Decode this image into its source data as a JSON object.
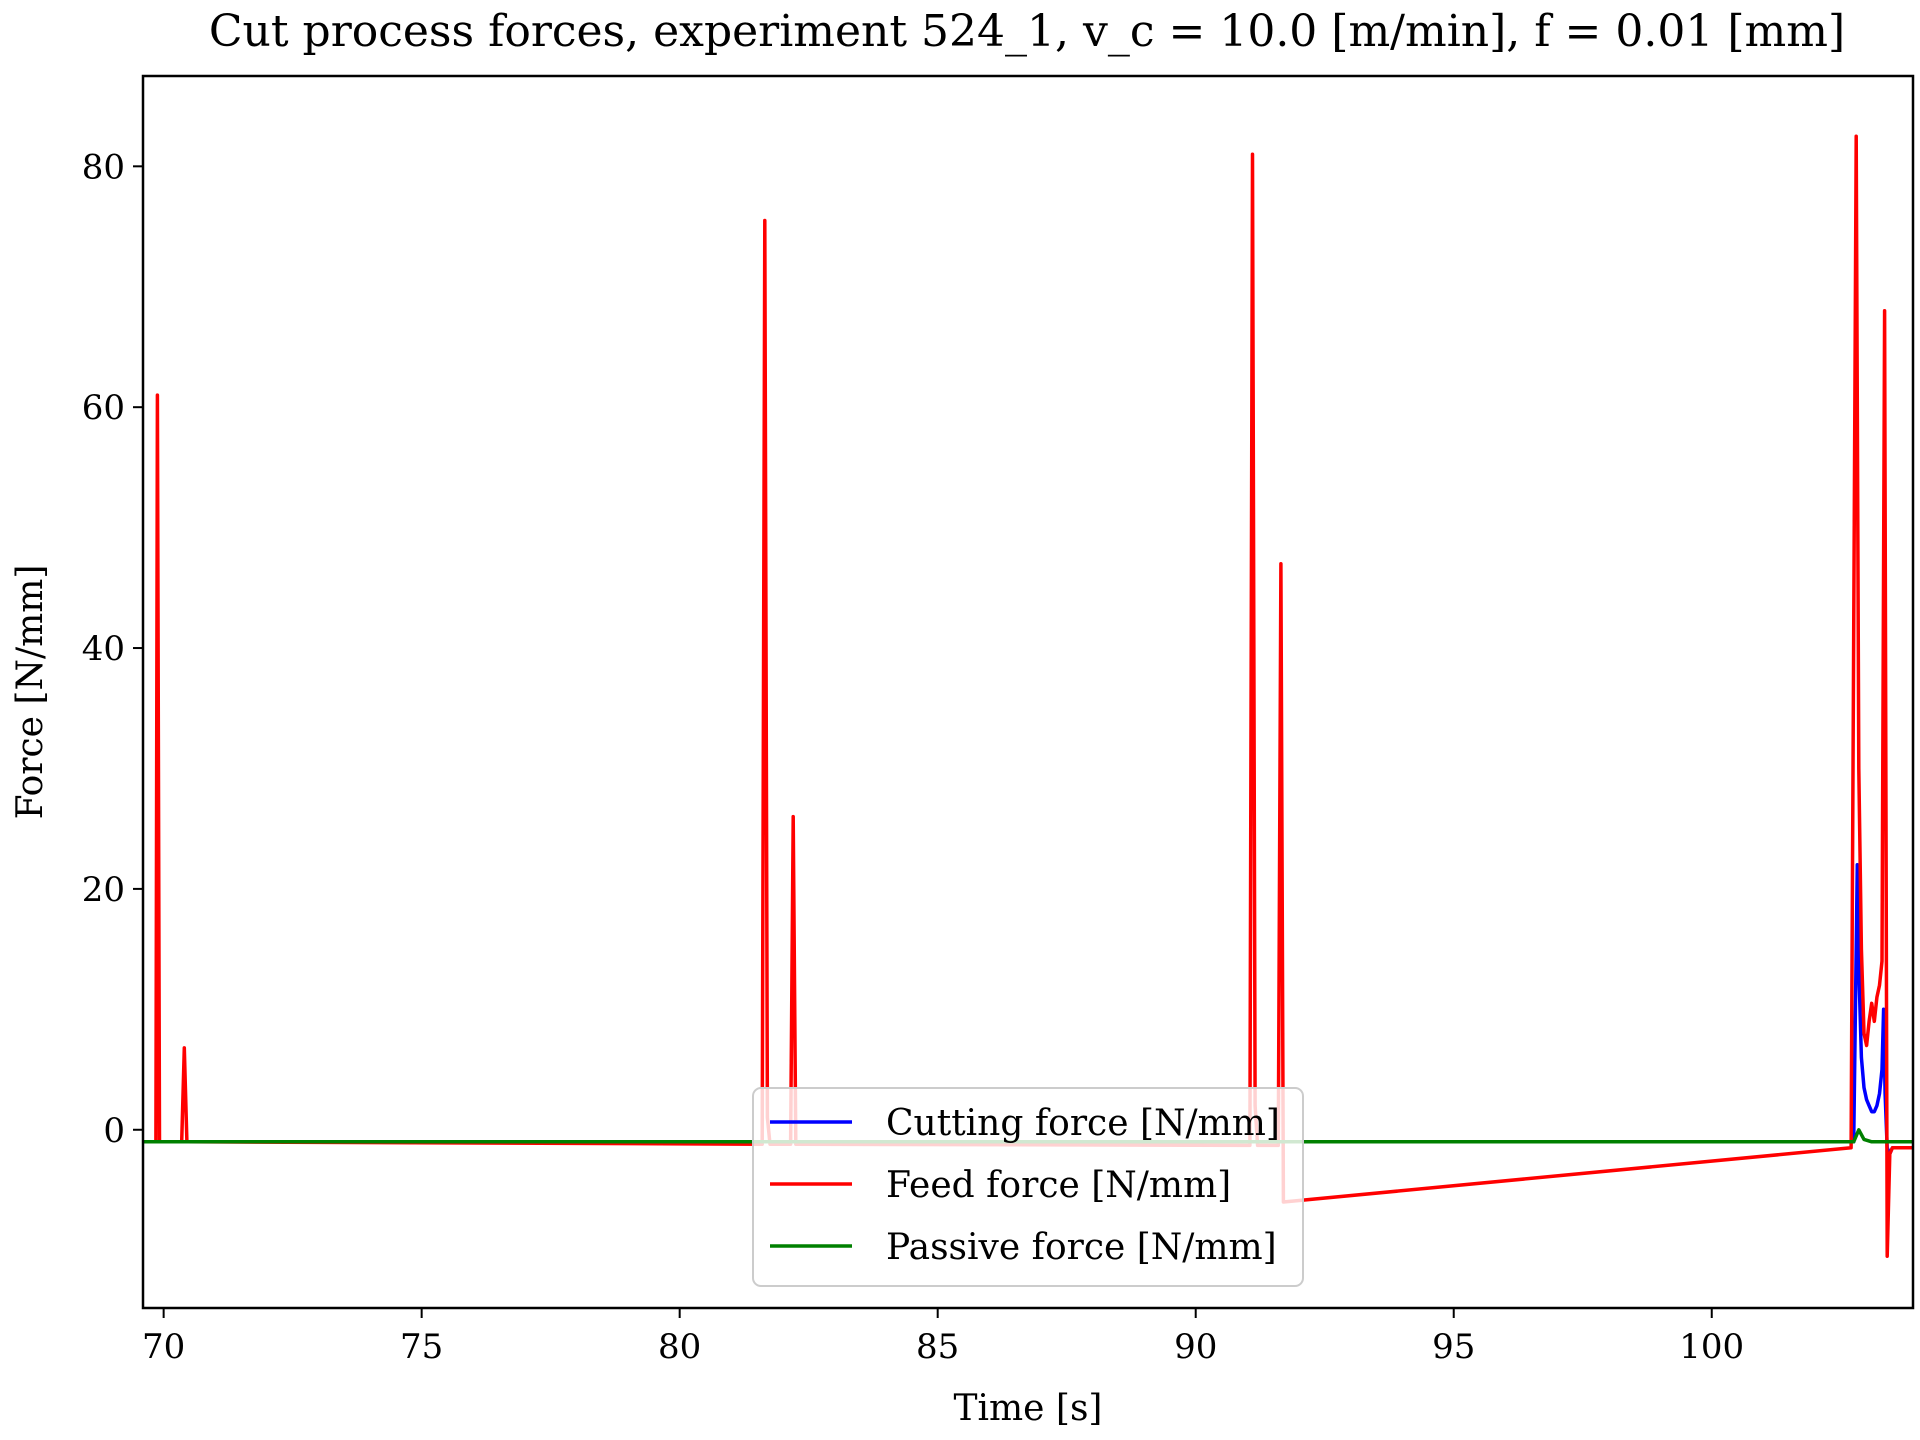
{
  "chart_data": {
    "type": "line",
    "title": "Cut process forces, experiment 524_1, v_c = 10.0 [m/min], f = 0.01 [mm]",
    "xlabel": "Time [s]",
    "ylabel": "Force [N/mm]",
    "xlim": [
      69.6,
      103.9
    ],
    "ylim": [
      -14.8,
      87.5
    ],
    "xticks": [
      70,
      75,
      80,
      85,
      90,
      95,
      100
    ],
    "yticks": [
      0,
      20,
      40,
      60,
      80
    ],
    "grid": false,
    "legend_position": "bottom-center",
    "series": [
      {
        "name": "Cutting force [N/mm]",
        "color": "#0000ff",
        "x": [
          69.6,
          102.75,
          102.82,
          102.86,
          102.9,
          102.95,
          103.0,
          103.05,
          103.1,
          103.15,
          103.2,
          103.25,
          103.3,
          103.33,
          103.36,
          103.4,
          103.45,
          103.5,
          103.6,
          103.9
        ],
        "y": [
          -1.0,
          -1.0,
          22.0,
          12.0,
          6.0,
          3.5,
          2.5,
          2.0,
          1.5,
          1.5,
          2.0,
          3.0,
          5.0,
          10.0,
          3.0,
          -1.5,
          -2.0,
          -1.5,
          -1.5,
          -1.5
        ]
      },
      {
        "name": "Feed force [N/mm]",
        "color": "#ff0000",
        "x": [
          69.6,
          69.85,
          69.88,
          69.92,
          70.35,
          70.4,
          70.45,
          81.6,
          81.65,
          81.7,
          81.75,
          82.15,
          82.2,
          82.25,
          91.05,
          91.1,
          91.15,
          91.2,
          91.6,
          91.65,
          91.7,
          102.7,
          102.8,
          102.85,
          102.9,
          102.95,
          103.0,
          103.05,
          103.1,
          103.15,
          103.2,
          103.25,
          103.3,
          103.35,
          103.4,
          103.45,
          103.5,
          103.6,
          103.9
        ],
        "y": [
          -1.0,
          -1.0,
          61.0,
          -1.0,
          -1.0,
          6.8,
          -1.0,
          -1.2,
          75.5,
          1.0,
          -1.2,
          -1.2,
          26.0,
          -1.2,
          -1.3,
          81.0,
          2.0,
          -1.3,
          -1.3,
          47.0,
          -6.0,
          -1.5,
          82.5,
          30.0,
          15.0,
          8.0,
          7.0,
          9.0,
          10.5,
          9.0,
          11.0,
          12.0,
          14.0,
          68.0,
          -10.5,
          -2.0,
          -1.5,
          -1.5,
          -1.5
        ]
      },
      {
        "name": "Passive force [N/mm]",
        "color": "#008000",
        "x": [
          69.6,
          92.0,
          102.75,
          102.85,
          102.95,
          103.1,
          103.9
        ],
        "y": [
          -1.0,
          -1.0,
          -1.0,
          0.0,
          -0.8,
          -1.0,
          -1.0
        ]
      }
    ]
  }
}
